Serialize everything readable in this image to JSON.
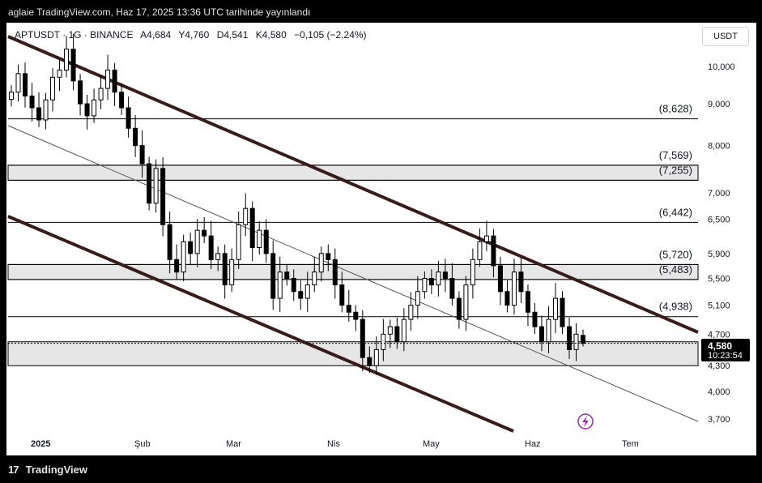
{
  "header": {
    "caption": "aglaie TradingView.com, Haz 17, 2025 13:36 UTC tarihinde yayınlandı"
  },
  "legend": {
    "symbol": "APTUSDT · 1G · BINANCE",
    "open": "A4,684",
    "high": "Y4,760",
    "low": "D4,541",
    "close": "K4,580",
    "change": "−0,105 (−2,24%)"
  },
  "currency_button": "USDT",
  "price_axis_ticks": [
    "10,000",
    "9,000",
    "8,000",
    "7,000",
    "6,500",
    "5,900",
    "5,500",
    "5,100",
    "4,700",
    "4,300",
    "4,000",
    "3,700"
  ],
  "time_axis_ticks": [
    "2025",
    "Şub",
    "Mar",
    "Nis",
    "May",
    "Haz",
    "Tem"
  ],
  "current_price": {
    "value": "4,580",
    "countdown": "10:23:54"
  },
  "level_labels": [
    "(8,628)",
    "(7,569)",
    "(7,255)",
    "(6,442)",
    "(5,720)",
    "(5,483)",
    "(4,938)"
  ],
  "footer": {
    "brand": "TradingView",
    "mark": "17"
  },
  "colors": {
    "channel": "#3a1b1b",
    "up": "#ffffff",
    "down": "#000000",
    "zone": "#e6e6e6"
  },
  "chart_data": {
    "type": "candlestick",
    "y_scale": "log",
    "symbol": "APTUSDT",
    "interval": "1D",
    "exchange": "BINANCE",
    "last": {
      "open": 4.684,
      "high": 4.76,
      "low": 4.541,
      "close": 4.58
    },
    "horizontal_levels": [
      8.628,
      7.569,
      7.255,
      6.442,
      5.72,
      5.483,
      4.938
    ],
    "zones": [
      [
        7.255,
        7.569
      ],
      [
        5.483,
        5.72
      ],
      [
        4.3,
        4.6
      ]
    ],
    "closes": [
      9.3,
      9.8,
      9.2,
      8.9,
      8.6,
      9.1,
      9.7,
      9.9,
      10.5,
      9.6,
      9.0,
      8.7,
      9.1,
      9.4,
      9.9,
      9.3,
      8.9,
      8.4,
      8.0,
      7.6,
      6.8,
      7.5,
      6.4,
      5.8,
      5.6,
      6.1,
      5.9,
      6.3,
      6.2,
      5.8,
      5.9,
      5.4,
      5.8,
      6.4,
      6.7,
      6.0,
      6.3,
      5.9,
      5.2,
      5.6,
      5.5,
      5.3,
      5.2,
      5.4,
      5.6,
      5.9,
      5.8,
      5.4,
      5.1,
      5.0,
      4.9,
      4.4,
      4.3,
      4.5,
      4.7,
      4.8,
      4.6,
      4.9,
      5.1,
      5.3,
      5.5,
      5.4,
      5.6,
      5.5,
      5.2,
      4.9,
      5.4,
      5.8,
      6.1,
      6.2,
      5.7,
      5.3,
      5.1,
      5.6,
      5.3,
      5.0,
      4.8,
      4.6,
      4.9,
      5.2,
      4.8,
      4.5,
      4.7,
      4.58
    ]
  }
}
